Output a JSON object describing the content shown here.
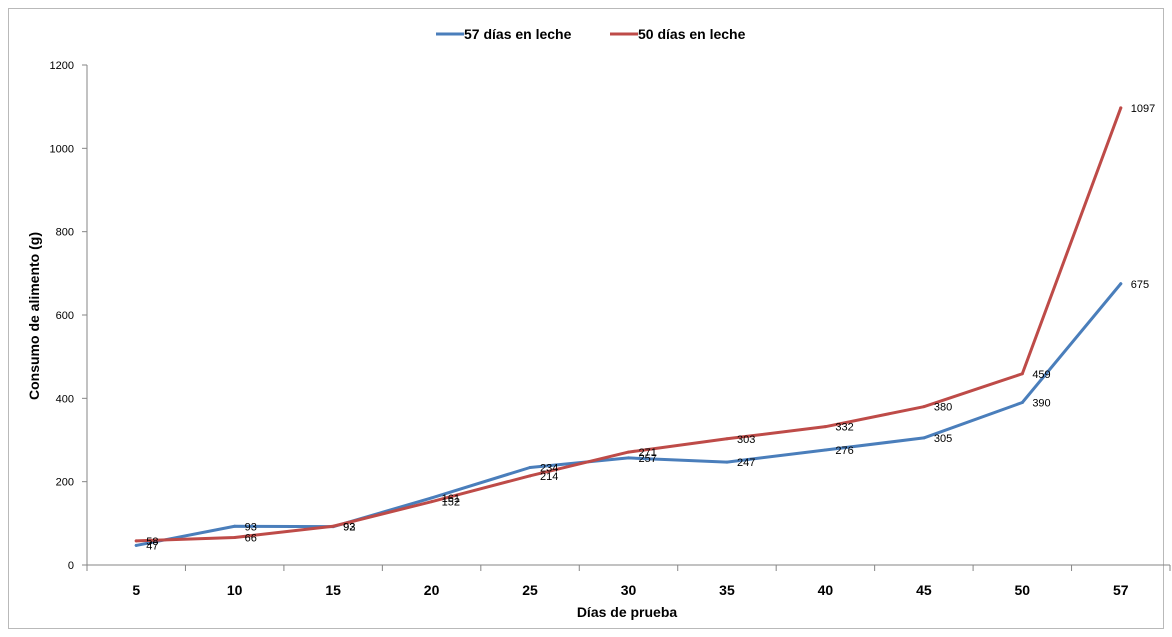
{
  "chart_data": {
    "type": "line",
    "categories": [
      "5",
      "10",
      "15",
      "20",
      "25",
      "30",
      "35",
      "40",
      "45",
      "50",
      "57"
    ],
    "series": [
      {
        "name": "57 días en leche",
        "color": "#4a7ebb",
        "values": [
          47,
          93,
          92,
          161,
          234,
          257,
          247,
          276,
          305,
          390,
          675
        ]
      },
      {
        "name": "50 días en leche",
        "color": "#be4b48",
        "values": [
          58,
          66,
          93,
          152,
          214,
          271,
          303,
          332,
          380,
          459,
          1097
        ]
      }
    ],
    "xlabel": "Días de prueba",
    "ylabel": "Consumo de alimento (g)",
    "ylim": [
      0,
      1200
    ],
    "yticks": [
      0,
      200,
      400,
      600,
      800,
      1000,
      1200
    ],
    "grid": false,
    "legend_position": "top"
  }
}
